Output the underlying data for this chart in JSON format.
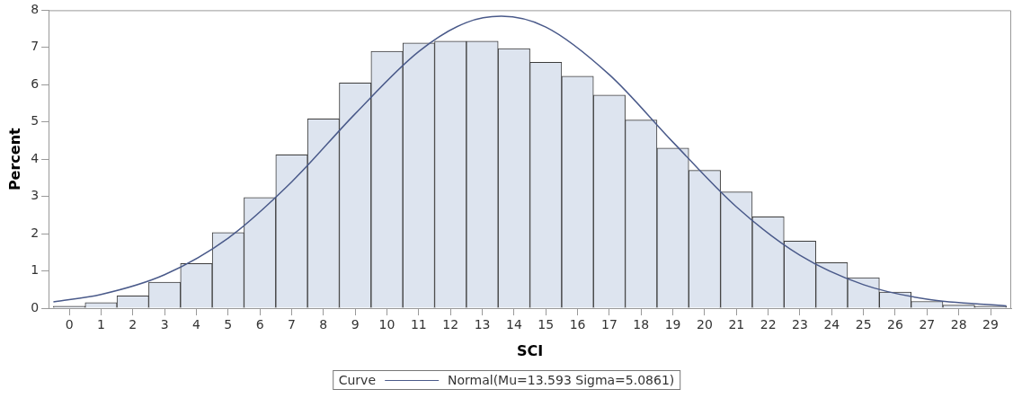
{
  "chart_data": {
    "type": "histogram",
    "xlabel": "SCI",
    "ylabel": "Percent",
    "legend_title": "Curve",
    "legend": "bottom",
    "grid": false,
    "bins": [
      -0.5,
      0.5,
      1.5,
      2.5,
      3.5,
      4.5,
      5.5,
      6.5,
      7.5,
      8.5,
      9.5,
      10.5,
      11.5,
      12.5,
      13.5,
      14.5,
      15.5,
      16.5,
      17.5,
      18.5,
      19.5,
      20.5,
      21.5,
      22.5,
      23.5,
      24.5,
      25.5,
      26.5,
      27.5,
      28.5,
      29.5
    ],
    "values": [
      0.05,
      0.15,
      0.33,
      0.7,
      1.2,
      2.03,
      2.97,
      4.12,
      5.08,
      6.05,
      6.9,
      7.12,
      7.17,
      7.17,
      6.97,
      6.6,
      6.23,
      5.72,
      5.05,
      4.3,
      3.7,
      3.12,
      2.45,
      1.8,
      1.22,
      0.82,
      0.43,
      0.18,
      0.08,
      0.05
    ],
    "color": "#dde4ef",
    "series": [
      {
        "type": "line",
        "name": "Normal(Mu=13.593 Sigma=5.0861)",
        "color": "#4a5a8a",
        "x": [
          -0.5,
          1,
          3,
          5,
          7,
          9,
          11,
          12.5,
          13.6,
          15,
          17,
          19,
          21,
          23,
          25,
          27,
          29.5
        ],
        "values": [
          0.17,
          0.37,
          0.9,
          1.88,
          3.39,
          5.22,
          6.89,
          7.67,
          7.84,
          7.55,
          6.27,
          4.46,
          2.72,
          1.42,
          0.63,
          0.24,
          0.06
        ]
      }
    ],
    "xlim": [
      -0.65,
      29.65
    ],
    "xticks": [
      0,
      1,
      2,
      3,
      4,
      5,
      6,
      7,
      8,
      9,
      10,
      11,
      12,
      13,
      14,
      15,
      16,
      17,
      18,
      19,
      20,
      21,
      22,
      23,
      24,
      25,
      26,
      27,
      28,
      29
    ],
    "ylim": [
      0,
      8
    ],
    "yticks": [
      0,
      1,
      2,
      3,
      4,
      5,
      6,
      7,
      8
    ]
  }
}
